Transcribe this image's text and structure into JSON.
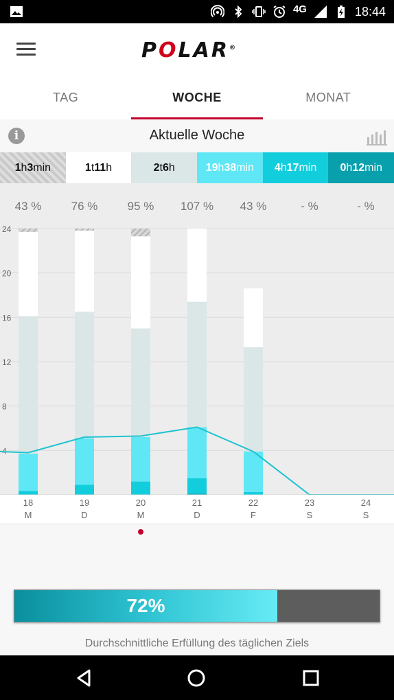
{
  "status_bar": {
    "network": "4G",
    "time": "18:44",
    "icons": [
      "image-icon",
      "hotspot-icon",
      "bluetooth-icon",
      "vibrate-icon",
      "alarm-icon",
      "signal-icon",
      "battery-charging-icon"
    ]
  },
  "app": {
    "logo_text_p": "P",
    "logo_text_o": "O",
    "logo_text_rest": "LAR",
    "logo_reg": "®"
  },
  "tabs": [
    {
      "label": "TAG",
      "active": false
    },
    {
      "label": "WOCHE",
      "active": true
    },
    {
      "label": "MONAT",
      "active": false
    }
  ],
  "week_header": {
    "title": "Aktuelle Woche",
    "info_icon": "i"
  },
  "summary": [
    {
      "v1": "1",
      "u1": "h",
      "v2": "3",
      "u2": "min",
      "bg": "#d3d3d3",
      "fg": "#111"
    },
    {
      "v1": "1",
      "u1": "t",
      "v2": "11",
      "u2": "h",
      "bg": "#ffffff",
      "fg": "#111"
    },
    {
      "v1": "2",
      "u1": "t",
      "v2": "6",
      "u2": "h",
      "bg": "#dbe7e7",
      "fg": "#111"
    },
    {
      "v1": "19",
      "u1": "h",
      "v2": "38",
      "u2": "min",
      "bg": "#5fe7f5",
      "fg": "#ffffff"
    },
    {
      "v1": "4",
      "u1": "h",
      "v2": "17",
      "u2": "min",
      "bg": "#12cedd",
      "fg": "#ffffff"
    },
    {
      "v1": "0",
      "u1": "h",
      "v2": "12",
      "u2": "min",
      "bg": "#09a0ad",
      "fg": "#ffffff"
    }
  ],
  "chart_data": {
    "type": "bar",
    "categories": [
      "18",
      "19",
      "20",
      "21",
      "22",
      "23",
      "24"
    ],
    "weekday_letters": [
      "M",
      "D",
      "M",
      "D",
      "F",
      "S",
      "S"
    ],
    "percentages": [
      "43 %",
      "76 %",
      "95 %",
      "107 %",
      "43 %",
      "- %",
      "- %"
    ],
    "ylim": [
      0,
      24
    ],
    "yticks": [
      4,
      8,
      12,
      16,
      20,
      24
    ],
    "series": [
      {
        "name": "dark-teal",
        "color": "#09a0ad",
        "values": [
          0,
          0,
          0,
          0.1,
          0,
          0,
          0
        ]
      },
      {
        "name": "teal",
        "color": "#12cedd",
        "values": [
          0.35,
          0.9,
          1.2,
          1.4,
          0.25,
          0,
          0
        ]
      },
      {
        "name": "light-cyan",
        "color": "#5fe7f5",
        "values": [
          3.35,
          4.2,
          4.0,
          4.6,
          3.65,
          0,
          0
        ]
      },
      {
        "name": "light-grey-green",
        "color": "#dbe7e7",
        "values": [
          12.4,
          11.4,
          9.8,
          11.3,
          9.4,
          0,
          0
        ]
      },
      {
        "name": "white",
        "color": "#ffffff",
        "values": [
          7.6,
          7.3,
          8.3,
          6.6,
          5.3,
          0,
          0
        ]
      },
      {
        "name": "hatched",
        "color": "#cccccc",
        "values": [
          0.3,
          0.2,
          0.7,
          0,
          0,
          0,
          0
        ]
      }
    ],
    "line": [
      3.8,
      5.2,
      5.3,
      6.1,
      3.9,
      0,
      0
    ],
    "line_start": 3.9,
    "line_end": 0,
    "line_color": "#1ec3d0",
    "selected_day_index": 2
  },
  "progress": {
    "value": 0.72,
    "label": "72%",
    "caption": "Durchschnittliche Erfüllung des täglichen Ziels"
  }
}
